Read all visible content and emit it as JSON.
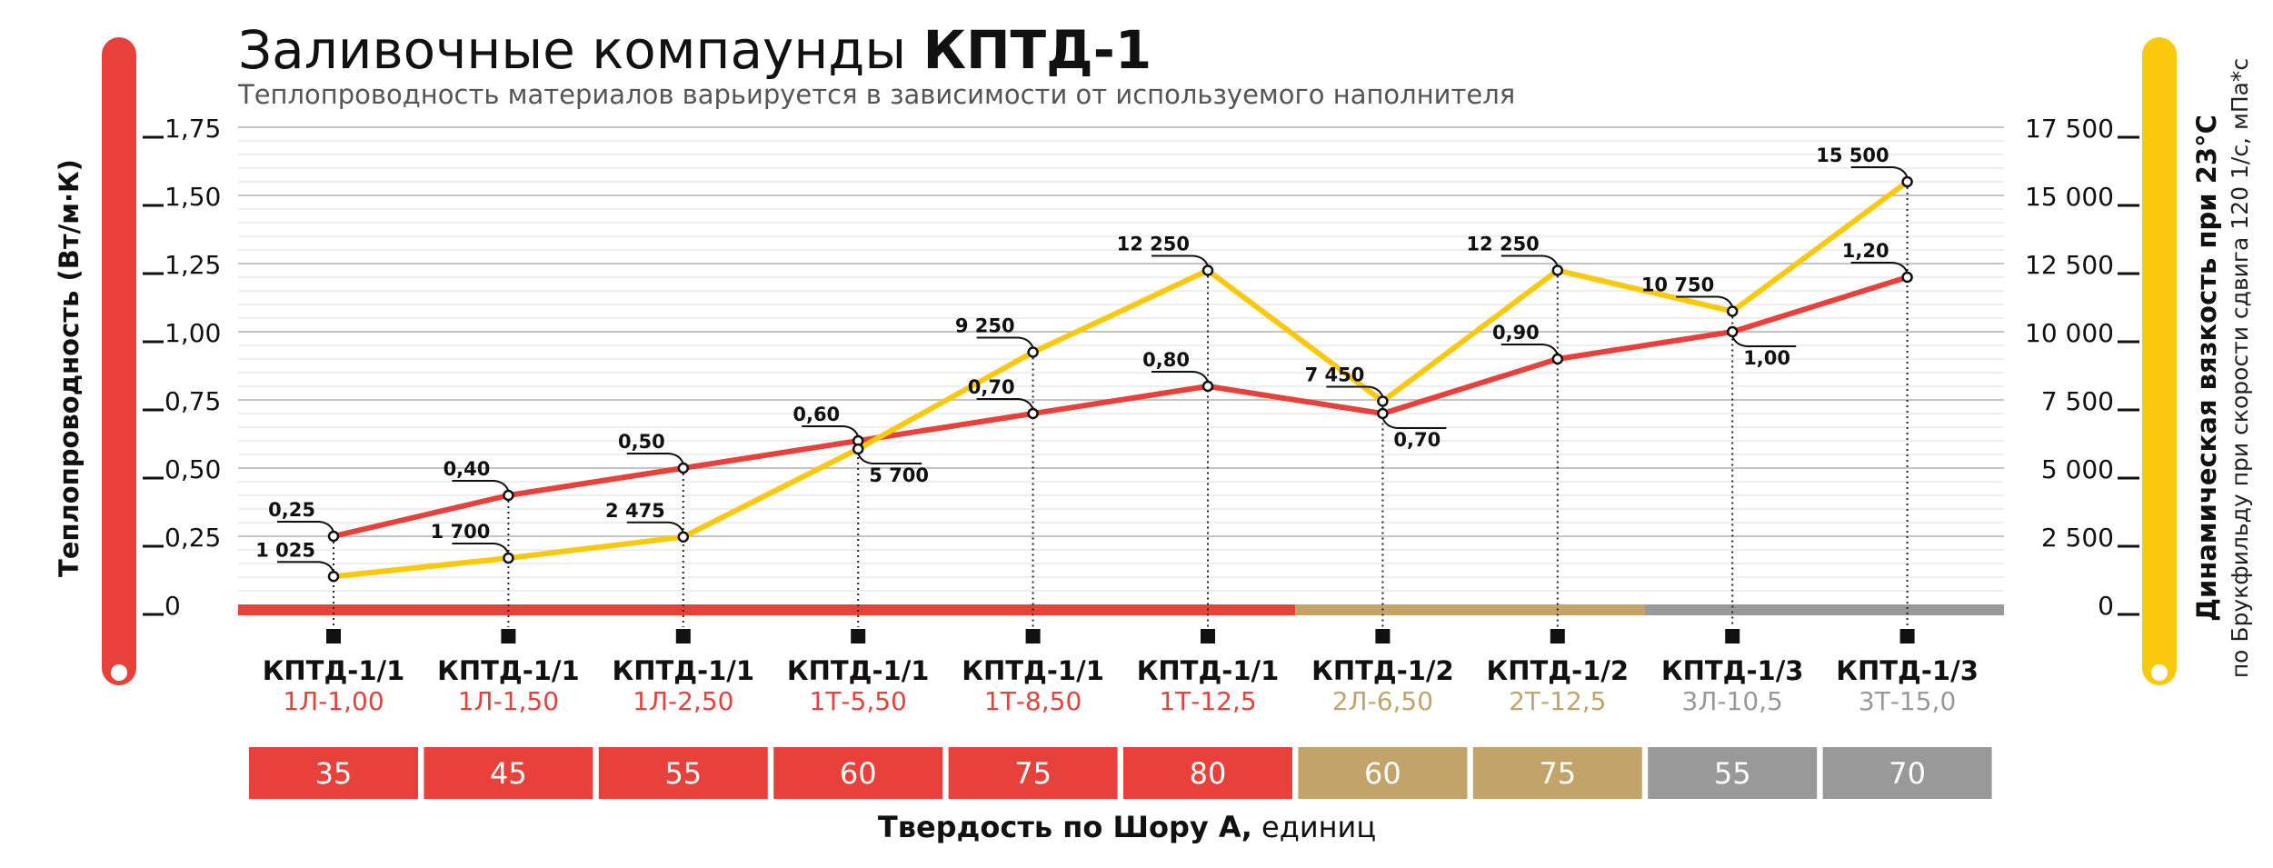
{
  "title": {
    "light": "Заливочные компаунды ",
    "bold": "КПТД-1"
  },
  "subtitle": "Теплопроводность материалов варьируется в зависимости от используемого наполнителя",
  "colors": {
    "red": "#e8403a",
    "yellow": "#fac80c",
    "tan": "#c2a36a",
    "gray": "#999999",
    "grid": "#d2d2d2"
  },
  "chart_data": {
    "type": "line",
    "title": "Заливочные компаунды КПТД-1",
    "left_axis": {
      "label": "Теплопроводность (Вт/м·К)",
      "ticks": [
        0,
        0.25,
        0.5,
        0.75,
        1.0,
        1.25,
        1.5,
        1.75
      ],
      "tick_labels": [
        "0",
        "0,25",
        "0,50",
        "0,75",
        "1,00",
        "1,25",
        "1,50",
        "1,75"
      ],
      "range": [
        0,
        1.75
      ]
    },
    "right_axis": {
      "label": "Динамическая вязкость при 23°С",
      "sublabel": "по Брукфильду при скорости сдвига 120 1/с, мПа*с",
      "ticks": [
        0,
        2500,
        5000,
        7500,
        10000,
        12500,
        15000,
        17500
      ],
      "tick_labels": [
        "0",
        "2 500",
        "5 000",
        "7 500",
        "10 000",
        "12 500",
        "15 000",
        "17 500"
      ],
      "range": [
        0,
        17500
      ]
    },
    "xlabel": {
      "bold": "Твердость по Шору А,",
      "light": " единиц"
    },
    "categories": [
      {
        "name": "КПТД-1/1",
        "code": "1Л-1,00",
        "group": "red",
        "hardness": "35"
      },
      {
        "name": "КПТД-1/1",
        "code": "1Л-1,50",
        "group": "red",
        "hardness": "45"
      },
      {
        "name": "КПТД-1/1",
        "code": "1Л-2,50",
        "group": "red",
        "hardness": "55"
      },
      {
        "name": "КПТД-1/1",
        "code": "1Т-5,50",
        "group": "red",
        "hardness": "60"
      },
      {
        "name": "КПТД-1/1",
        "code": "1Т-8,50",
        "group": "red",
        "hardness": "75"
      },
      {
        "name": "КПТД-1/1",
        "code": "1Т-12,5",
        "group": "red",
        "hardness": "80"
      },
      {
        "name": "КПТД-1/2",
        "code": "2Л-6,50",
        "group": "tan",
        "hardness": "60"
      },
      {
        "name": "КПТД-1/2",
        "code": "2Т-12,5",
        "group": "tan",
        "hardness": "75"
      },
      {
        "name": "КПТД-1/3",
        "code": "3Л-10,5",
        "group": "gray",
        "hardness": "55"
      },
      {
        "name": "КПТД-1/3",
        "code": "3Т-15,0",
        "group": "gray",
        "hardness": "70"
      }
    ],
    "series": [
      {
        "name": "Теплопроводность",
        "axis": "left",
        "color": "#e8403a",
        "values": [
          0.25,
          0.4,
          0.5,
          0.6,
          0.7,
          0.8,
          0.7,
          0.9,
          1.0,
          1.2
        ],
        "labels": [
          "0,25",
          "0,40",
          "0,50",
          "0,60",
          "0,70",
          "0,80",
          "0,70",
          "0,90",
          "1,00",
          "1,20"
        ],
        "label_side": [
          "up",
          "up",
          "up",
          "up",
          "up",
          "up",
          "down",
          "up",
          "down",
          "up"
        ]
      },
      {
        "name": "Вязкость",
        "axis": "right",
        "color": "#fac80c",
        "values": [
          1025,
          1700,
          2475,
          5700,
          9250,
          12250,
          7450,
          12250,
          10750,
          15500
        ],
        "labels": [
          "1 025",
          "1 700",
          "2 475",
          "5 700",
          "9 250",
          "12 250",
          "7 450",
          "12 250",
          "10 750",
          "15 500"
        ],
        "label_side": [
          "up",
          "up",
          "up",
          "down",
          "up",
          "up",
          "up",
          "up",
          "up",
          "up"
        ]
      }
    ]
  }
}
